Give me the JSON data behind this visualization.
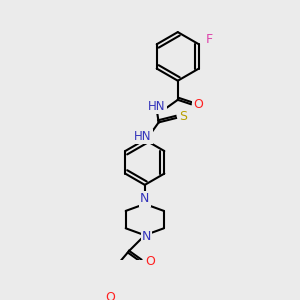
{
  "bg_color": "#ebebeb",
  "bond_color": "#000000",
  "bond_width": 1.5,
  "atom_colors": {
    "N": "#3333bb",
    "O": "#ff2020",
    "S": "#b8a000",
    "F": "#dd44aa",
    "C": "#000000"
  },
  "font_size": 8.5,
  "fig_size": [
    3.0,
    3.0
  ],
  "dpi": 100
}
